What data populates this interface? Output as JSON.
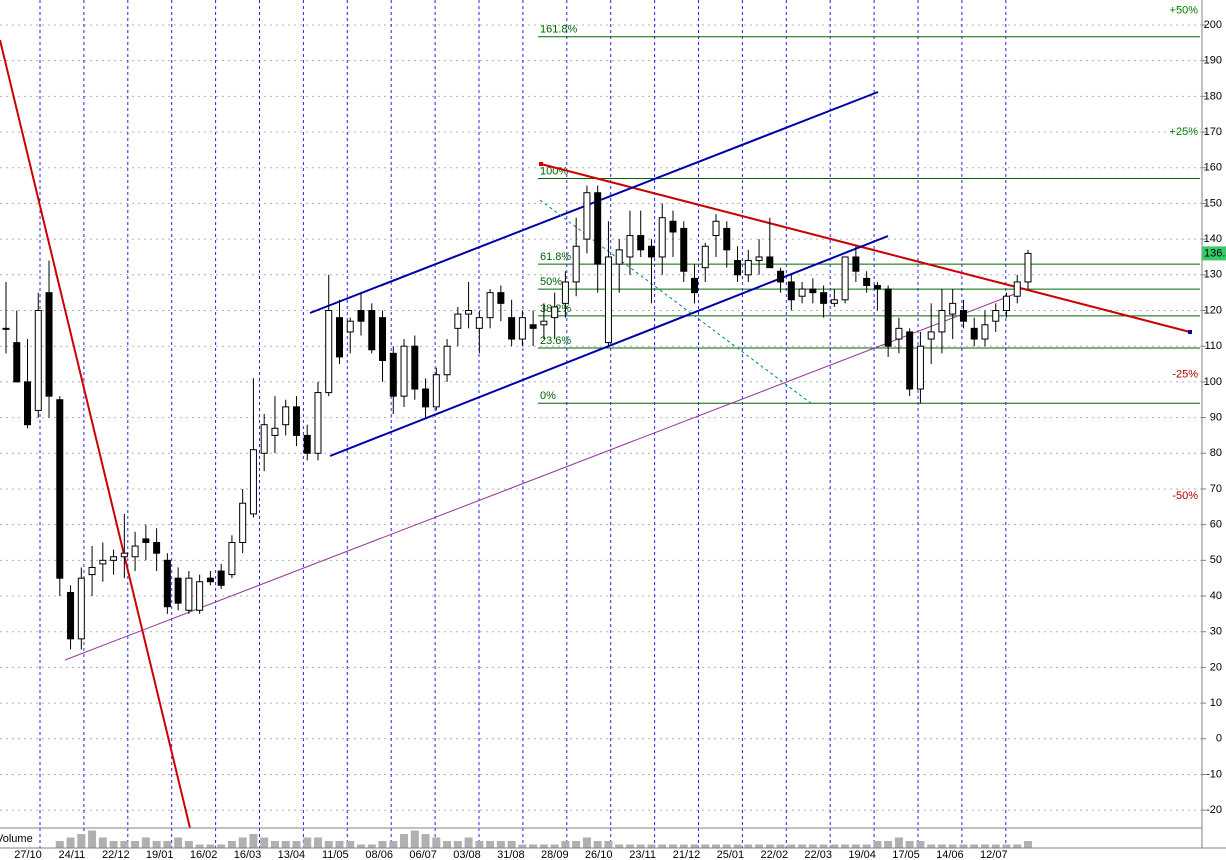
{
  "chart_data": {
    "type": "candlestick",
    "categories": [
      "27/10",
      "24/11",
      "22/12",
      "19/01",
      "16/02",
      "16/03",
      "13/04",
      "11/05",
      "08/06",
      "06/07",
      "03/08",
      "31/08",
      "28/09",
      "26/10",
      "23/11",
      "21/12",
      "25/01",
      "22/02",
      "22/03",
      "19/04",
      "17/05",
      "14/06",
      "12/07"
    ],
    "open": [
      115,
      111,
      100,
      92,
      125,
      95,
      41,
      28,
      46,
      49,
      50,
      51,
      51,
      56,
      55,
      50,
      45,
      36,
      36,
      45,
      47,
      46,
      55,
      63,
      80,
      85,
      88,
      93,
      85,
      80,
      97,
      118,
      114,
      120,
      120,
      118,
      108,
      96,
      110,
      98,
      93,
      102,
      115,
      119,
      115,
      118,
      125,
      118,
      112,
      116,
      116,
      118,
      122,
      128,
      140,
      153,
      111,
      133,
      135,
      141,
      138,
      135,
      145,
      143,
      129,
      132,
      141,
      143,
      134,
      130,
      134,
      135,
      131,
      128,
      124,
      126,
      125,
      122,
      123,
      135,
      129,
      127,
      126,
      112,
      114,
      98,
      112,
      114,
      119,
      120,
      115,
      112,
      117,
      120,
      124,
      128
    ],
    "high": [
      128,
      120,
      112,
      125,
      134,
      96,
      43,
      48,
      54,
      55,
      53,
      63,
      58,
      60,
      59,
      52,
      48,
      47,
      46,
      47,
      49,
      57,
      70,
      101,
      91,
      96,
      95,
      96,
      88,
      100,
      130,
      123,
      118,
      125,
      122,
      120,
      110,
      112,
      113,
      101,
      104,
      112,
      121,
      128,
      120,
      126,
      127,
      123,
      120,
      120,
      122,
      125,
      131,
      146,
      155,
      155,
      145,
      140,
      148,
      148,
      140,
      150,
      148,
      145,
      133,
      139,
      147,
      145,
      138,
      137,
      140,
      146,
      132,
      130,
      128,
      129,
      127,
      126,
      135,
      138,
      131,
      128,
      127,
      118,
      115,
      114,
      122,
      126,
      126,
      123,
      118,
      120,
      122,
      125,
      130,
      137
    ],
    "low": [
      108,
      100,
      87,
      90,
      90,
      40,
      25,
      25,
      40,
      44,
      46,
      45,
      47,
      50,
      47,
      35,
      36,
      35,
      35,
      43,
      42,
      45,
      52,
      62,
      75,
      80,
      85,
      82,
      78,
      78,
      96,
      105,
      108,
      113,
      108,
      100,
      91,
      93,
      95,
      90,
      92,
      100,
      110,
      115,
      108,
      115,
      117,
      110,
      110,
      110,
      112,
      112,
      118,
      124,
      136,
      125,
      110,
      125,
      130,
      135,
      122,
      130,
      135,
      128,
      122,
      128,
      135,
      132,
      128,
      128,
      130,
      132,
      125,
      120,
      122,
      122,
      118,
      121,
      122,
      128,
      125,
      120,
      107,
      108,
      96,
      94,
      105,
      108,
      112,
      115,
      110,
      110,
      114,
      118,
      122,
      126
    ],
    "close": [
      115,
      100,
      88,
      120,
      96,
      45,
      28,
      45,
      48,
      50,
      51,
      52,
      54,
      55,
      52,
      37,
      38,
      45,
      44,
      44,
      43,
      55,
      66,
      81,
      88,
      87,
      93,
      85,
      80,
      97,
      120,
      107,
      117,
      117,
      109,
      106,
      96,
      110,
      98,
      93,
      102,
      110,
      119,
      120,
      118,
      125,
      122,
      112,
      118,
      115,
      117,
      121,
      128,
      138,
      153,
      133,
      135,
      137,
      141,
      137,
      135,
      146,
      142,
      131,
      125,
      138,
      145,
      137,
      130,
      134,
      135,
      132,
      128,
      123,
      126,
      125,
      122,
      123,
      135,
      131,
      127,
      126,
      110,
      115,
      98,
      110,
      114,
      120,
      122,
      117,
      112,
      116,
      120,
      124,
      128,
      136
    ],
    "up_color": "#ffffff",
    "down_color": "#000000",
    "ylim": [
      -25,
      207
    ],
    "yticks": [
      -20,
      -10,
      0,
      10,
      20,
      30,
      40,
      50,
      60,
      70,
      80,
      90,
      100,
      110,
      120,
      130,
      140,
      150,
      160,
      170,
      180,
      190,
      200
    ],
    "grid": true,
    "fib_levels": [
      {
        "label": "161.8%",
        "value": 196.7
      },
      {
        "label": "100%",
        "value": 157
      },
      {
        "label": "61.8%",
        "value": 133
      },
      {
        "label": "50%",
        "value": 126
      },
      {
        "label": "38.2%",
        "value": 118.5
      },
      {
        "label": "23.6%",
        "value": 109.5
      },
      {
        "label": "0%",
        "value": 94
      }
    ],
    "fib_color": "#006600",
    "percent_marks": [
      {
        "label": "+50%",
        "value": 204,
        "color": "#008000"
      },
      {
        "label": "+25%",
        "value": 170,
        "color": "#008000"
      },
      {
        "label": "-25%",
        "value": 102,
        "color": "#aa0000"
      },
      {
        "label": "-50%",
        "value": 68,
        "color": "#aa0000"
      }
    ],
    "last_price": {
      "label": "136.",
      "value": 136,
      "color": "#33cc66"
    },
    "volume": {
      "name": "Volume",
      "color": "#b0b0b0",
      "values": [
        0,
        0,
        0,
        0,
        0,
        2,
        3,
        4,
        5,
        3,
        2,
        2,
        2,
        3,
        2,
        2,
        3,
        2,
        1,
        1,
        1,
        2,
        3,
        4,
        3,
        2,
        2,
        2,
        3,
        3,
        2,
        2,
        2,
        1,
        1,
        2,
        2,
        4,
        5,
        4,
        3,
        2,
        2,
        3,
        2,
        2,
        2,
        2,
        1,
        1,
        1,
        1,
        2,
        2,
        3,
        2,
        2,
        1,
        1,
        1,
        1,
        1,
        1,
        1,
        1,
        1,
        1,
        1,
        1,
        1,
        1,
        1,
        1,
        1,
        1,
        1,
        1,
        1,
        1,
        1,
        1,
        2,
        2,
        3,
        2,
        2,
        1,
        1,
        1,
        1,
        1,
        1,
        1,
        1,
        1,
        2
      ]
    }
  }
}
